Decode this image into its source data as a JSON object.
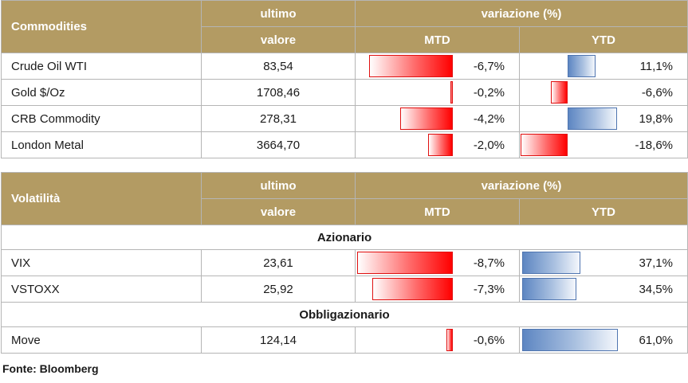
{
  "commodities": {
    "title": "Commodities",
    "col_last_top": "ultimo",
    "col_last_bottom": "valore",
    "col_change": "variazione (%)",
    "col_mtd": "MTD",
    "col_ytd": "YTD",
    "rows": [
      {
        "name": "Crude Oil WTI",
        "value": "83,54",
        "mtd": "-6,7%",
        "ytd": "11,1%",
        "mtd_num": -6.7,
        "ytd_num": 11.1
      },
      {
        "name": "Gold $/Oz",
        "value": "1708,46",
        "mtd": "-0,2%",
        "ytd": "-6,6%",
        "mtd_num": -0.2,
        "ytd_num": -6.6
      },
      {
        "name": "CRB Commodity",
        "value": "278,31",
        "mtd": "-4,2%",
        "ytd": "19,8%",
        "mtd_num": -4.2,
        "ytd_num": 19.8
      },
      {
        "name": "London Metal",
        "value": "3664,70",
        "mtd": "-2,0%",
        "ytd": "-18,6%",
        "mtd_num": -2.0,
        "ytd_num": -18.6
      }
    ]
  },
  "volatility": {
    "title": "Volatilità",
    "col_last_top": "ultimo",
    "col_last_bottom": "valore",
    "col_change": "variazione (%)",
    "col_mtd": "MTD",
    "col_ytd": "YTD",
    "section_equity": "Azionario",
    "equity_rows": [
      {
        "name": "VIX",
        "value": "23,61",
        "mtd": "-8,7%",
        "ytd": "37,1%",
        "mtd_num": -8.7,
        "ytd_num": 37.1
      },
      {
        "name": "VSTOXX",
        "value": "25,92",
        "mtd": "-7,3%",
        "ytd": "34,5%",
        "mtd_num": -7.3,
        "ytd_num": 34.5
      }
    ],
    "section_bond": "Obbligazionario",
    "bond_rows": [
      {
        "name": "Move",
        "value": "124,14",
        "mtd": "-0,6%",
        "ytd": "61,0%",
        "mtd_num": -0.6,
        "ytd_num": 61.0
      }
    ]
  },
  "source": "Fonte: Bloomberg",
  "colors": {
    "header": "#b39b63",
    "negative": "#ff0000",
    "positive": "#5d86c2"
  }
}
